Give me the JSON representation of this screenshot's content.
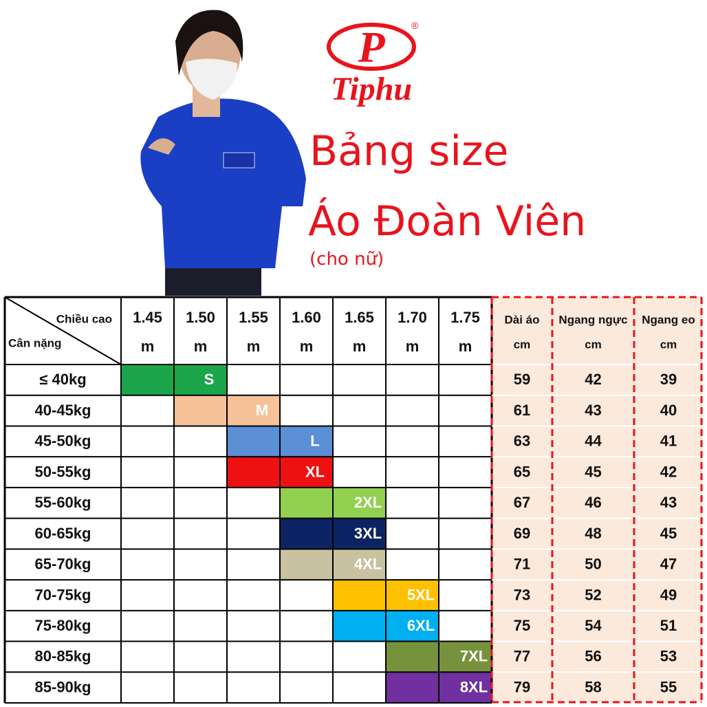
{
  "header": {
    "logo_mark": "®",
    "logo": "Tiphu",
    "title_line1": "Bảng size",
    "title_line2": "Áo Đoàn Viên",
    "subtitle": "(cho nữ)"
  },
  "table": {
    "corner_top": "Chiều cao",
    "corner_bottom": "Cân nặng",
    "heights": [
      "1.45",
      "1.50",
      "1.55",
      "1.60",
      "1.65",
      "1.70",
      "1.75"
    ],
    "height_unit": "m",
    "measure_columns": [
      {
        "name": "Dài áo",
        "unit": "cm"
      },
      {
        "name": "Ngang ngực",
        "unit": "cm"
      },
      {
        "name": "Ngang eo",
        "unit": "cm"
      }
    ],
    "rows": [
      {
        "weight": "≤ 40kg",
        "size": "S",
        "color": "#1ca64c",
        "measures": [
          59,
          42,
          39
        ]
      },
      {
        "weight": "40-45kg",
        "size": "M",
        "color": "#f7c299",
        "measures": [
          61,
          43,
          40
        ]
      },
      {
        "weight": "45-50kg",
        "size": "L",
        "color": "#5b8fd6",
        "measures": [
          63,
          44,
          41
        ]
      },
      {
        "weight": "50-55kg",
        "size": "XL",
        "color": "#ee1111",
        "measures": [
          65,
          45,
          42
        ]
      },
      {
        "weight": "55-60kg",
        "size": "2XL",
        "color": "#92d050",
        "measures": [
          67,
          46,
          43
        ]
      },
      {
        "weight": "60-65kg",
        "size": "3XL",
        "color": "#0c2463",
        "measures": [
          69,
          48,
          45
        ]
      },
      {
        "weight": "65-70kg",
        "size": "4XL",
        "color": "#c9c2a0",
        "measures": [
          71,
          50,
          47
        ]
      },
      {
        "weight": "70-75kg",
        "size": "5XL",
        "color": "#ffc000",
        "measures": [
          73,
          52,
          49
        ]
      },
      {
        "weight": "75-80kg",
        "size": "6XL",
        "color": "#00b0f0",
        "measures": [
          75,
          54,
          51
        ]
      },
      {
        "weight": "80-85kg",
        "size": "7XL",
        "color": "#76923c",
        "measures": [
          77,
          56,
          53
        ]
      },
      {
        "weight": "85-90kg",
        "size": "8XL",
        "color": "#7030a0",
        "measures": [
          79,
          58,
          55
        ]
      }
    ]
  }
}
